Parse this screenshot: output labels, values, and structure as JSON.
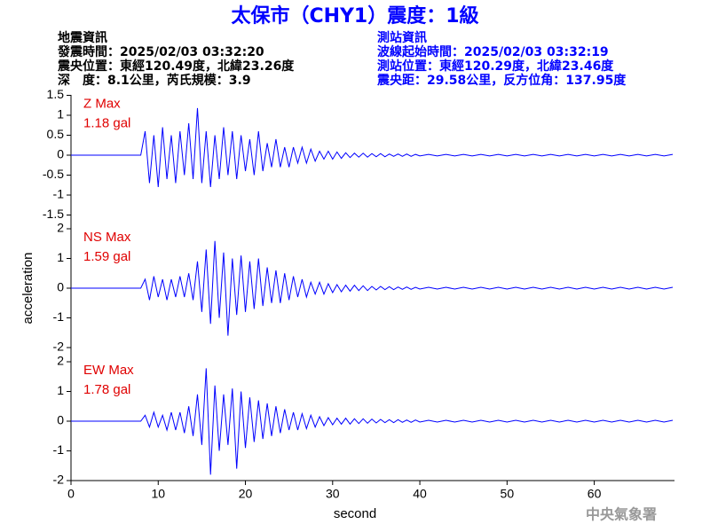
{
  "header": {
    "title": "太保市（CHY1）震度：1級",
    "left": [
      "地震資訊",
      "發震時間：2025/02/03 03:32:20",
      "震央位置：東經120.49度，北緯23.26度",
      "深　度：8.1公里，芮氏規模：3.9"
    ],
    "right": [
      "測站資訊",
      "波線起始時間：2025/02/03 03:32:19",
      "測站位置：東經120.29度，北緯23.46度",
      "震央距：29.58公里，反方位角：137.95度"
    ]
  },
  "y_label": "acceleration",
  "x_label": "second",
  "footer": "中央氣象署",
  "chart_data": [
    {
      "type": "line",
      "color": "#0000ff",
      "annotations": [
        "Z Max",
        "1.18 gal"
      ],
      "xlim": [
        0,
        69.2
      ],
      "ylim": [
        -1.5,
        1.5
      ],
      "yticks": [
        -1.5,
        -1,
        -0.5,
        0,
        0.5,
        1,
        1.5
      ],
      "x": [
        0,
        8,
        8.5,
        9,
        9.5,
        10,
        10.5,
        11,
        11.5,
        12,
        12.5,
        13,
        13.5,
        14,
        14.5,
        15,
        15.5,
        16,
        16.5,
        17,
        17.5,
        18,
        18.5,
        19,
        19.5,
        20,
        20.5,
        21,
        21.5,
        22,
        22.5,
        23,
        23.5,
        24,
        24.5,
        25,
        25.5,
        26,
        26.5,
        27,
        27.5,
        28,
        28.5,
        29,
        29.5,
        30,
        30.5,
        31,
        31.5,
        32,
        32.5,
        33,
        33.5,
        34,
        34.5,
        35,
        35.5,
        36,
        36.5,
        37,
        37.5,
        38,
        38.5,
        39,
        39.5,
        40,
        41,
        42,
        43,
        44,
        45,
        46,
        47,
        48,
        49,
        50,
        51,
        52,
        53,
        54,
        55,
        56,
        57,
        58,
        59,
        60,
        61,
        62,
        63,
        64,
        65,
        66,
        67,
        68,
        69
      ],
      "values": [
        0,
        0,
        0.6,
        -0.7,
        0.5,
        -0.8,
        0.7,
        -0.6,
        0.5,
        -0.7,
        0.6,
        -0.5,
        0.8,
        -0.6,
        1.18,
        -0.7,
        0.6,
        -0.8,
        0.5,
        -0.6,
        0.7,
        -0.5,
        0.6,
        -0.6,
        0.5,
        -0.4,
        0.4,
        -0.5,
        0.6,
        -0.4,
        0.3,
        -0.3,
        0.4,
        -0.3,
        0.2,
        -0.3,
        0.2,
        -0.2,
        0.2,
        -0.2,
        0.15,
        -0.15,
        0.1,
        -0.1,
        0.1,
        -0.1,
        0.08,
        -0.08,
        0.06,
        -0.06,
        0.05,
        -0.05,
        0.05,
        -0.05,
        0.04,
        -0.04,
        0.04,
        -0.04,
        0.03,
        -0.03,
        0.03,
        -0.03,
        0.03,
        -0.03,
        0.02,
        -0.02,
        0.02,
        -0.02,
        0.02,
        -0.02,
        0.02,
        -0.02,
        0.02,
        -0.02,
        0.02,
        -0.02,
        0.02,
        -0.02,
        0.02,
        -0.02,
        0.02,
        -0.02,
        0.02,
        -0.02,
        0.02,
        -0.02,
        0.02,
        -0.02,
        0.02,
        -0.02,
        0.02,
        -0.02,
        0.02,
        -0.02,
        0.02
      ]
    },
    {
      "type": "line",
      "color": "#0000ff",
      "annotations": [
        "NS Max",
        "1.59 gal"
      ],
      "xlim": [
        0,
        69.2
      ],
      "ylim": [
        -2,
        2
      ],
      "yticks": [
        -2,
        -1,
        0,
        1,
        2
      ],
      "x": [
        0,
        8,
        8.5,
        9,
        9.5,
        10,
        10.5,
        11,
        11.5,
        12,
        12.5,
        13,
        13.5,
        14,
        14.5,
        15,
        15.5,
        16,
        16.5,
        17,
        17.5,
        18,
        18.5,
        19,
        19.5,
        20,
        20.5,
        21,
        21.5,
        22,
        22.5,
        23,
        23.5,
        24,
        24.5,
        25,
        25.5,
        26,
        26.5,
        27,
        27.5,
        28,
        28.5,
        29,
        29.5,
        30,
        30.5,
        31,
        31.5,
        32,
        32.5,
        33,
        33.5,
        34,
        34.5,
        35,
        35.5,
        36,
        36.5,
        37,
        37.5,
        38,
        38.5,
        39,
        39.5,
        40,
        41,
        42,
        43,
        44,
        45,
        46,
        47,
        48,
        49,
        50,
        51,
        52,
        53,
        54,
        55,
        56,
        57,
        58,
        59,
        60,
        61,
        62,
        63,
        64,
        65,
        66,
        67,
        68,
        69
      ],
      "values": [
        0,
        0,
        0.3,
        -0.4,
        0.4,
        -0.3,
        0.3,
        -0.4,
        0.3,
        -0.3,
        0.4,
        -0.3,
        0.5,
        -0.4,
        0.9,
        -0.8,
        1.3,
        -1.2,
        1.59,
        -1.0,
        1.2,
        -1.6,
        1.0,
        -0.9,
        1.1,
        -0.8,
        0.9,
        -0.7,
        1.0,
        -0.6,
        0.7,
        -0.5,
        0.6,
        -0.5,
        0.5,
        -0.4,
        0.4,
        -0.3,
        0.3,
        -0.3,
        0.2,
        -0.2,
        0.2,
        -0.2,
        0.15,
        -0.15,
        0.12,
        -0.12,
        0.1,
        -0.1,
        0.1,
        -0.08,
        0.08,
        -0.08,
        0.06,
        -0.06,
        0.06,
        -0.05,
        0.05,
        -0.05,
        0.04,
        -0.04,
        0.04,
        -0.04,
        0.03,
        -0.03,
        0.03,
        -0.03,
        0.03,
        -0.03,
        0.03,
        -0.03,
        0.03,
        -0.03,
        0.03,
        -0.03,
        0.03,
        -0.03,
        0.03,
        -0.03,
        0.03,
        -0.03,
        0.03,
        -0.03,
        0.03,
        -0.03,
        0.03,
        -0.03,
        0.03,
        -0.03,
        0.03,
        -0.03,
        0.03,
        -0.03,
        0.03
      ]
    },
    {
      "type": "line",
      "color": "#0000ff",
      "annotations": [
        "EW Max",
        "1.78 gal"
      ],
      "xlim": [
        0,
        69.2
      ],
      "ylim": [
        -2,
        2
      ],
      "yticks": [
        -2,
        -1,
        0,
        1,
        2
      ],
      "xticks": [
        0,
        10,
        20,
        30,
        40,
        50,
        60
      ],
      "x": [
        0,
        8,
        8.5,
        9,
        9.5,
        10,
        10.5,
        11,
        11.5,
        12,
        12.5,
        13,
        13.5,
        14,
        14.5,
        15,
        15.5,
        16,
        16.5,
        17,
        17.5,
        18,
        18.5,
        19,
        19.5,
        20,
        20.5,
        21,
        21.5,
        22,
        22.5,
        23,
        23.5,
        24,
        24.5,
        25,
        25.5,
        26,
        26.5,
        27,
        27.5,
        28,
        28.5,
        29,
        29.5,
        30,
        30.5,
        31,
        31.5,
        32,
        32.5,
        33,
        33.5,
        34,
        34.5,
        35,
        35.5,
        36,
        36.5,
        37,
        37.5,
        38,
        38.5,
        39,
        39.5,
        40,
        41,
        42,
        43,
        44,
        45,
        46,
        47,
        48,
        49,
        50,
        51,
        52,
        53,
        54,
        55,
        56,
        57,
        58,
        59,
        60,
        61,
        62,
        63,
        64,
        65,
        66,
        67,
        68,
        69
      ],
      "values": [
        0,
        0,
        0.2,
        -0.2,
        0.3,
        -0.2,
        0.2,
        -0.3,
        0.3,
        -0.3,
        0.3,
        -0.4,
        0.5,
        -0.5,
        0.9,
        -0.8,
        1.78,
        -1.8,
        1.2,
        -1.0,
        0.9,
        -0.8,
        1.1,
        -1.6,
        1.0,
        -0.9,
        0.8,
        -0.7,
        0.7,
        -0.6,
        0.6,
        -0.5,
        0.5,
        -0.4,
        0.4,
        -0.3,
        0.3,
        -0.3,
        0.25,
        -0.25,
        0.2,
        -0.2,
        0.15,
        -0.15,
        0.12,
        -0.12,
        0.1,
        -0.1,
        0.1,
        -0.1,
        0.08,
        -0.08,
        0.08,
        -0.07,
        0.07,
        -0.06,
        0.06,
        -0.05,
        0.05,
        -0.05,
        0.05,
        -0.04,
        0.04,
        -0.04,
        0.04,
        -0.03,
        0.03,
        -0.03,
        0.03,
        -0.03,
        0.03,
        -0.03,
        0.03,
        -0.03,
        0.03,
        -0.03,
        0.03,
        -0.03,
        0.03,
        -0.03,
        0.03,
        -0.03,
        0.03,
        -0.03,
        0.03,
        -0.03,
        0.03,
        -0.03,
        0.03,
        -0.03,
        0.03,
        -0.03,
        0.03,
        -0.03,
        0.03
      ]
    }
  ]
}
